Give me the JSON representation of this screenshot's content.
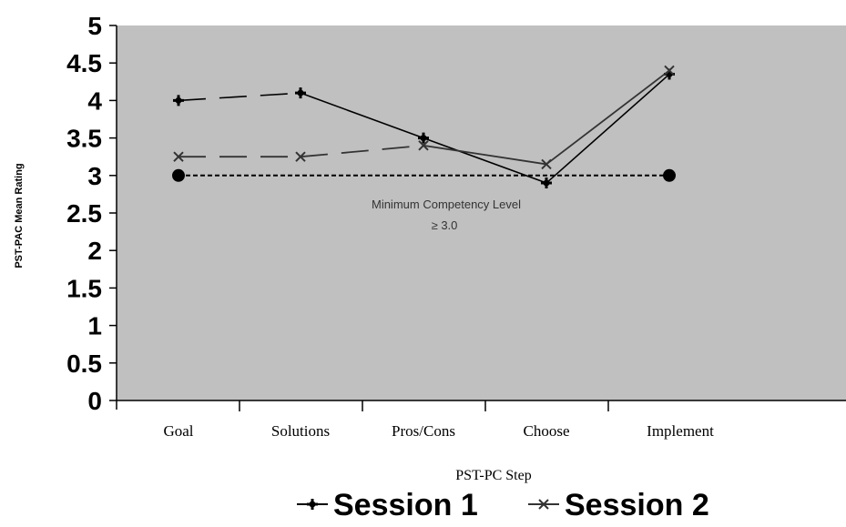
{
  "chart_data": {
    "type": "line",
    "categories": [
      "Goal",
      "Solutions",
      "Pros/Cons",
      "Choose",
      "Implement"
    ],
    "series": [
      {
        "name": "Session 1",
        "values": [
          4.0,
          4.1,
          3.5,
          2.9,
          4.35
        ],
        "color": "#000000",
        "marker": "plus"
      },
      {
        "name": "Session 2",
        "values": [
          3.25,
          3.25,
          3.4,
          3.15,
          4.4
        ],
        "color": "#333333",
        "marker": "x"
      }
    ],
    "reference_line": {
      "value": 3.0,
      "label_line1": "Minimum Competency Level",
      "label_line2": "≥ 3.0"
    },
    "xlabel": "PST-PC Step",
    "ylabel": "PST-PAC Mean Rating",
    "yticks": [
      "0",
      "0.5",
      "1",
      "1.5",
      "2",
      "2.5",
      "3",
      "3.5",
      "4",
      "4.5",
      "5"
    ],
    "ylim": [
      0,
      5
    ],
    "plot_background": "#c0c0c0",
    "legend_position": "bottom-center"
  }
}
